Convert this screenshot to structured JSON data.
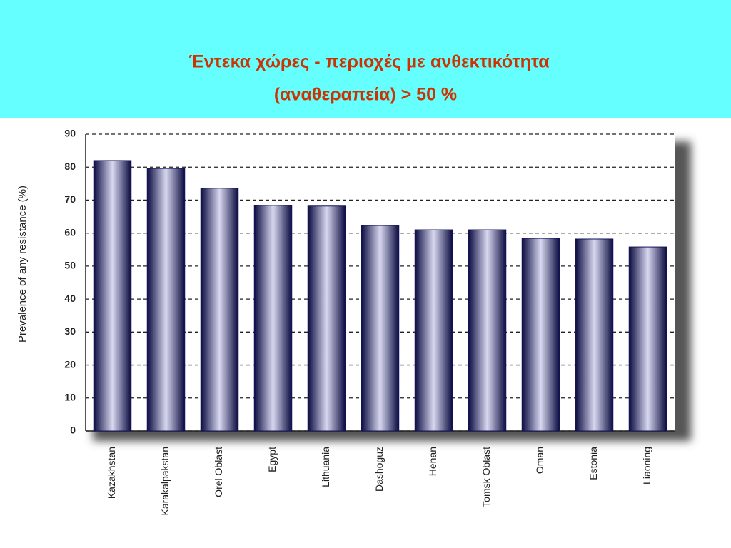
{
  "chart_data": {
    "type": "bar",
    "title_lines": [
      "Έντεκα χώρες - περιοχές με ανθεκτικότητα",
      "(αναθεραπεία)  > 50 %"
    ],
    "y_label": "Prevalence of any resistance (%)",
    "categories": [
      "Kazakhstan",
      "Karakalpakstan",
      "Orel Oblast",
      "Egypt",
      "Lithuania",
      "Dashoguz",
      "Henan",
      "Tomsk Oblast",
      "Oman",
      "Estonia",
      "Liaoning"
    ],
    "values": [
      82,
      79.6,
      73.6,
      68.4,
      68.2,
      62.3,
      61,
      61,
      58.4,
      58.2,
      55.8
    ],
    "color": "#14145a",
    "ylim": [
      0,
      90
    ],
    "yticks": [
      0,
      10,
      20,
      30,
      40,
      50,
      60,
      70,
      80,
      90
    ],
    "grid": true
  }
}
